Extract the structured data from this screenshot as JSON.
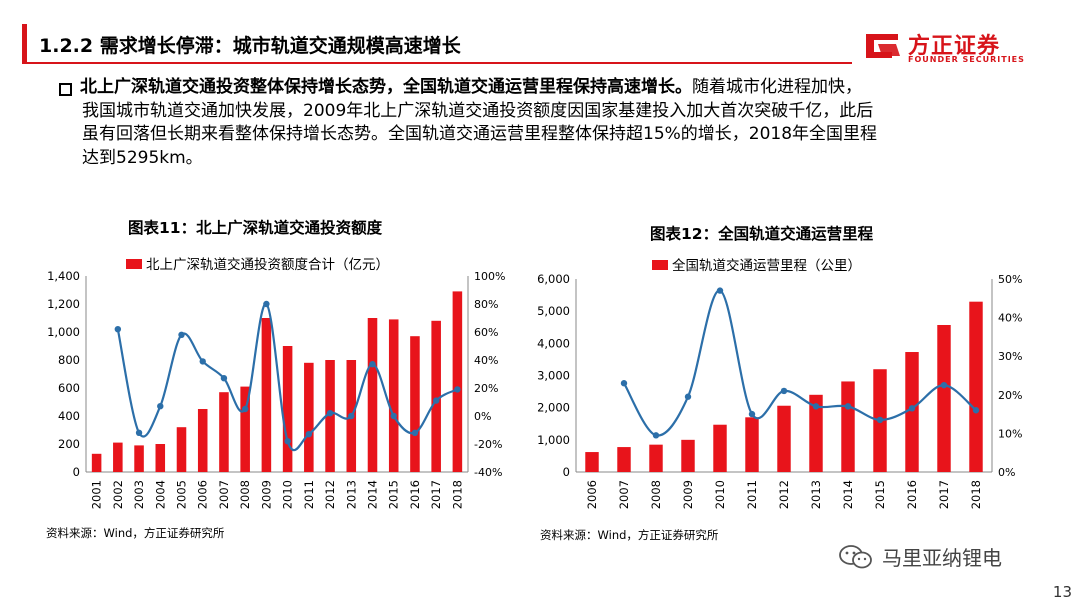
{
  "header": {
    "title": "1.2.2 需求增长停滞：城市轨道交通规模高速增长",
    "logo_cn": "方正证券",
    "logo_en": "FOUNDER SECURITIES"
  },
  "body": {
    "bullet_bold": "北上广深轨道交通投资整体保持增长态势，全国轨道交通运营里程保持高速增长。",
    "bullet_line1_rest": "随着城市化进程加快，",
    "bullet_line2": "我国城市轨道交通加快发展，2009年北上广深轨道交通投资额度因国家基建投入加大首次突破千亿，此后",
    "bullet_line3": "虽有回落但长期来看整体保持增长态势。全国轨道交通运营里程整体保持超15%的增长，2018年全国里程",
    "bullet_line4": "达到5295km。"
  },
  "chart_data": [
    {
      "type": "bar",
      "title": "图表11：北上广深轨道交通投资额度",
      "legend": "北上广深轨道交通投资额度合计（亿元）",
      "categories": [
        "2001",
        "2002",
        "2003",
        "2004",
        "2005",
        "2006",
        "2007",
        "2008",
        "2009",
        "2010",
        "2011",
        "2012",
        "2013",
        "2014",
        "2015",
        "2016",
        "2017",
        "2018"
      ],
      "values": [
        130,
        210,
        190,
        200,
        320,
        450,
        570,
        610,
        1100,
        900,
        780,
        800,
        800,
        1100,
        1090,
        970,
        1080,
        1290
      ],
      "ylim": [
        0,
        1400
      ],
      "yticks": [
        "0",
        "200",
        "400",
        "600",
        "800",
        "1,000",
        "1,200",
        "1,400"
      ],
      "growth": [
        null,
        62,
        -12,
        7,
        58,
        39,
        27,
        5,
        80,
        -18,
        -13,
        2,
        0,
        37,
        0,
        -12,
        11,
        19
      ],
      "y2lim": [
        -40,
        100
      ],
      "y2ticks": [
        "-40%",
        "-20%",
        "0%",
        "20%",
        "40%",
        "60%",
        "80%",
        "100%"
      ],
      "source": "资料来源：Wind，方正证券研究所",
      "colors": {
        "bar": "#e8141b",
        "line": "#2c6fa9"
      }
    },
    {
      "type": "bar",
      "title": "图表12：全国轨道交通运营里程",
      "legend": "全国轨道交通运营里程（公里）",
      "categories": [
        "2006",
        "2007",
        "2008",
        "2009",
        "2010",
        "2011",
        "2012",
        "2013",
        "2014",
        "2015",
        "2016",
        "2017",
        "2018"
      ],
      "values": [
        620,
        775,
        850,
        1000,
        1470,
        1700,
        2060,
        2400,
        2815,
        3195,
        3730,
        4570,
        5295
      ],
      "ylim": [
        0,
        6000
      ],
      "yticks": [
        "0",
        "1,000",
        "2,000",
        "3,000",
        "4,000",
        "5,000",
        "6,000"
      ],
      "growth": [
        null,
        23,
        9.5,
        19.5,
        47,
        15,
        21,
        17,
        17,
        13.5,
        16.5,
        22.5,
        16
      ],
      "y2lim": [
        0,
        50
      ],
      "y2ticks": [
        "0%",
        "10%",
        "20%",
        "30%",
        "40%",
        "50%"
      ],
      "source": "资料来源：Wind，方正证券研究所",
      "colors": {
        "bar": "#e8141b",
        "line": "#2c6fa9"
      }
    }
  ],
  "watermark": "马里亚纳锂电",
  "page_number": "13"
}
